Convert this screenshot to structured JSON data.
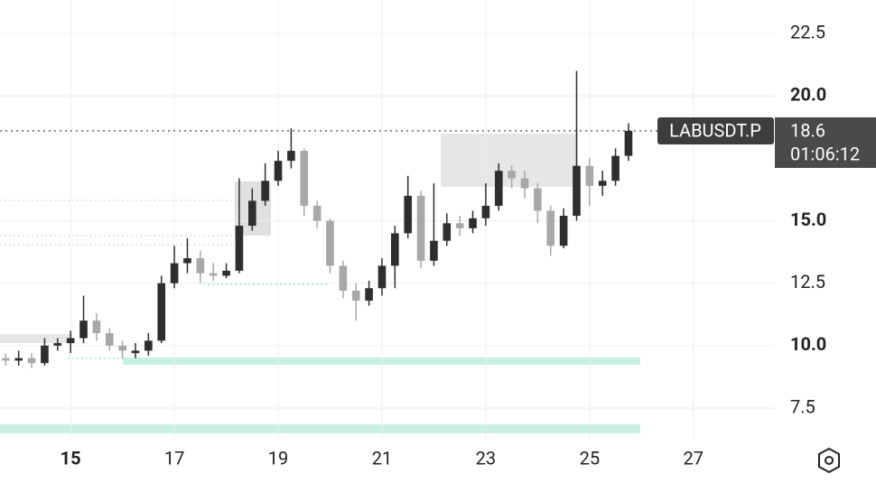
{
  "chart_data": {
    "type": "candlestick",
    "x": [
      13.75,
      14.0,
      14.25,
      14.5,
      14.75,
      15.0,
      15.25,
      15.5,
      15.75,
      16.0,
      16.25,
      16.5,
      16.75,
      17.0,
      17.25,
      17.5,
      17.75,
      18.0,
      18.25,
      18.5,
      18.75,
      19.0,
      19.25,
      19.5,
      19.75,
      20.0,
      20.25,
      20.5,
      20.75,
      21.0,
      21.25,
      21.5,
      21.75,
      22.0,
      22.25,
      22.5,
      22.75,
      23.0,
      23.25,
      23.5,
      23.75,
      24.0,
      24.25,
      24.5,
      24.75,
      25.0,
      25.25,
      25.5,
      25.75
    ],
    "open": [
      9.5,
      9.4,
      9.5,
      9.3,
      10.0,
      10.1,
      10.3,
      11.0,
      10.5,
      10.0,
      9.7,
      9.8,
      10.2,
      12.5,
      13.3,
      13.5,
      12.9,
      12.8,
      13.0,
      14.8,
      15.8,
      16.6,
      17.4,
      17.8,
      15.6,
      15.0,
      13.2,
      12.2,
      11.8,
      12.3,
      13.2,
      14.5,
      16.0,
      13.4,
      14.2,
      14.9,
      14.7,
      15.1,
      15.6,
      17.0,
      16.7,
      16.3,
      15.4,
      14.0,
      15.2,
      17.2,
      16.4,
      16.6,
      17.6
    ],
    "high": [
      9.7,
      9.8,
      9.7,
      10.3,
      10.3,
      10.6,
      12.0,
      11.3,
      10.7,
      10.2,
      10.1,
      10.5,
      12.8,
      14.0,
      14.3,
      13.8,
      13.3,
      13.3,
      16.7,
      16.3,
      17.3,
      17.8,
      18.7,
      17.9,
      15.8,
      15.1,
      13.4,
      12.5,
      12.6,
      13.5,
      14.8,
      16.8,
      16.2,
      16.5,
      15.3,
      15.2,
      15.4,
      16.5,
      17.3,
      17.2,
      17.0,
      16.5,
      15.6,
      15.5,
      21.0,
      17.5,
      17.0,
      17.9,
      18.9
    ],
    "low": [
      9.2,
      9.2,
      9.1,
      9.2,
      9.8,
      9.7,
      10.1,
      10.2,
      9.8,
      9.5,
      9.5,
      9.6,
      10.1,
      12.3,
      12.9,
      12.5,
      12.6,
      12.7,
      12.9,
      14.6,
      15.6,
      16.4,
      17.1,
      15.2,
      14.7,
      12.9,
      11.9,
      11.0,
      11.6,
      12.0,
      12.3,
      14.3,
      13.1,
      13.2,
      14.0,
      14.4,
      14.5,
      14.8,
      15.4,
      16.3,
      15.9,
      14.9,
      13.6,
      13.9,
      15.0,
      15.6,
      16.0,
      16.4,
      17.4
    ],
    "close": [
      9.4,
      9.5,
      9.3,
      10.0,
      10.1,
      10.3,
      11.0,
      10.5,
      10.0,
      9.8,
      9.8,
      10.2,
      12.5,
      13.3,
      13.5,
      12.9,
      12.8,
      13.0,
      14.8,
      15.8,
      16.6,
      17.4,
      17.8,
      15.6,
      15.0,
      13.2,
      12.2,
      11.8,
      12.3,
      13.2,
      14.5,
      16.0,
      13.4,
      14.2,
      14.9,
      14.7,
      15.1,
      15.6,
      17.0,
      16.7,
      16.3,
      15.4,
      14.0,
      15.2,
      17.2,
      16.4,
      16.6,
      17.6,
      18.6
    ],
    "up_color": "#2e2e2e",
    "down_color": "#a8a8a8",
    "xlim": [
      13.64,
      28.57
    ],
    "xticks": [
      15,
      17,
      19,
      21,
      23,
      25,
      27
    ],
    "ylim": [
      6.2,
      23.84
    ],
    "yticks": [
      {
        "value": 7.5,
        "label": "7.5"
      },
      {
        "value": 10,
        "label": "10.0"
      },
      {
        "value": 12.5,
        "label": "12.5"
      },
      {
        "value": 15,
        "label": "15.0"
      },
      {
        "value": 20,
        "label": "20.0"
      },
      {
        "value": 22.5,
        "label": "22.5"
      }
    ],
    "grid": true,
    "symbol": "LABUSDT.P",
    "last_price": 18.6,
    "countdown": "01:06:12"
  }
}
